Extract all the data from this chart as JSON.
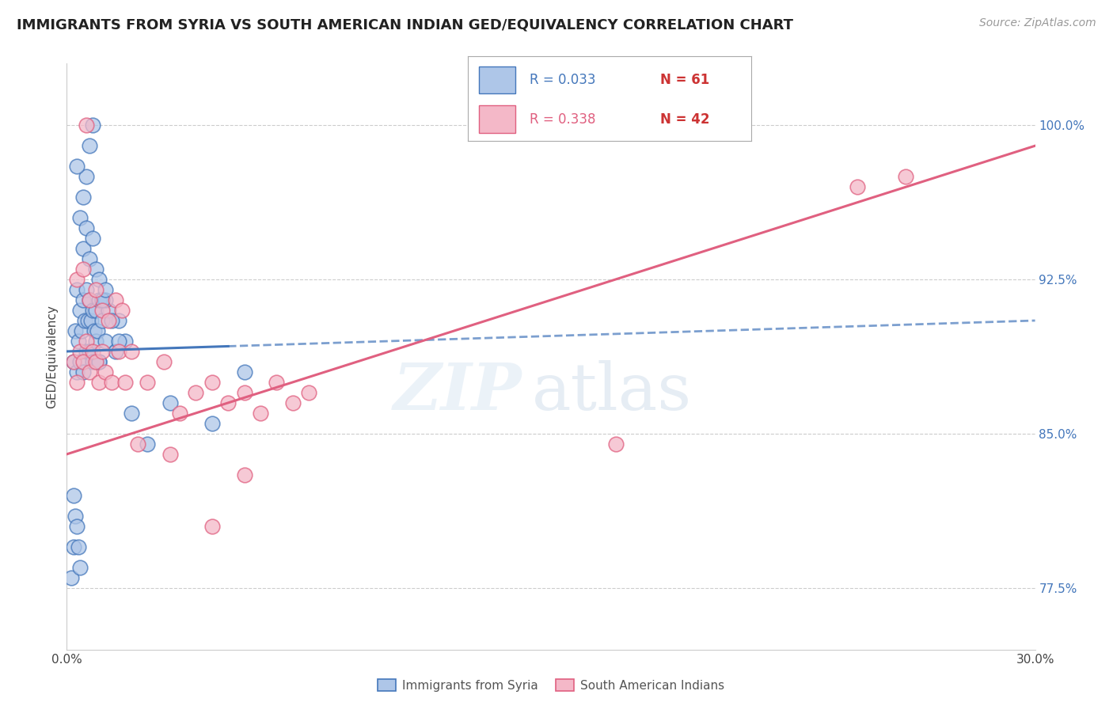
{
  "title": "IMMIGRANTS FROM SYRIA VS SOUTH AMERICAN INDIAN GED/EQUIVALENCY CORRELATION CHART",
  "source": "Source: ZipAtlas.com",
  "ylabel": "GED/Equivalency",
  "yticks": [
    77.5,
    85.0,
    92.5,
    100.0
  ],
  "xlim": [
    0.0,
    30.0
  ],
  "ylim": [
    74.5,
    103.0
  ],
  "legend_labels": [
    "Immigrants from Syria",
    "South American Indians"
  ],
  "color_syria": "#aec6e8",
  "color_sai": "#f4b8c8",
  "trendline_syria_color": "#4477bb",
  "trendline_sai_color": "#e06080",
  "syria_x": [
    0.15,
    0.2,
    0.2,
    0.25,
    0.3,
    0.3,
    0.35,
    0.4,
    0.4,
    0.45,
    0.5,
    0.5,
    0.55,
    0.6,
    0.6,
    0.65,
    0.7,
    0.7,
    0.75,
    0.8,
    0.8,
    0.85,
    0.9,
    0.9,
    0.95,
    1.0,
    1.0,
    1.1,
    1.2,
    1.3,
    1.5,
    1.6,
    1.8,
    2.0,
    2.5,
    3.2,
    4.5,
    5.5,
    1.0,
    1.2,
    0.5,
    0.6,
    0.7,
    0.8,
    0.3,
    0.4,
    0.5,
    0.6,
    0.7,
    0.8,
    0.9,
    1.0,
    1.1,
    1.2,
    1.4,
    1.6,
    0.2,
    0.25,
    0.3,
    0.35,
    0.4
  ],
  "syria_y": [
    78.0,
    79.5,
    88.5,
    90.0,
    88.0,
    92.0,
    89.5,
    88.5,
    91.0,
    90.0,
    88.0,
    91.5,
    90.5,
    89.0,
    92.0,
    90.5,
    89.0,
    91.5,
    90.5,
    88.5,
    91.0,
    90.0,
    89.5,
    91.0,
    90.0,
    88.5,
    91.5,
    90.5,
    89.5,
    91.0,
    89.0,
    90.5,
    89.5,
    86.0,
    84.5,
    86.5,
    85.5,
    88.0,
    88.5,
    91.5,
    96.5,
    97.5,
    99.0,
    100.0,
    98.0,
    95.5,
    94.0,
    95.0,
    93.5,
    94.5,
    93.0,
    92.5,
    91.5,
    92.0,
    90.5,
    89.5,
    82.0,
    81.0,
    80.5,
    79.5,
    78.5
  ],
  "sai_x": [
    0.2,
    0.3,
    0.4,
    0.5,
    0.6,
    0.7,
    0.8,
    0.9,
    1.0,
    1.1,
    1.2,
    1.4,
    1.6,
    1.8,
    2.0,
    2.5,
    3.0,
    3.5,
    4.0,
    4.5,
    5.0,
    5.5,
    6.0,
    6.5,
    7.0,
    7.5,
    0.3,
    0.5,
    0.7,
    0.9,
    1.1,
    1.3,
    1.5,
    1.7,
    2.2,
    3.2,
    4.5,
    5.5,
    24.5,
    26.0,
    17.0,
    0.6
  ],
  "sai_y": [
    88.5,
    87.5,
    89.0,
    88.5,
    89.5,
    88.0,
    89.0,
    88.5,
    87.5,
    89.0,
    88.0,
    87.5,
    89.0,
    87.5,
    89.0,
    87.5,
    88.5,
    86.0,
    87.0,
    87.5,
    86.5,
    87.0,
    86.0,
    87.5,
    86.5,
    87.0,
    92.5,
    93.0,
    91.5,
    92.0,
    91.0,
    90.5,
    91.5,
    91.0,
    84.5,
    84.0,
    80.5,
    83.0,
    97.0,
    97.5,
    84.5,
    100.0
  ],
  "watermark_zip": "ZIP",
  "watermark_atlas": "atlas",
  "background_color": "#ffffff"
}
